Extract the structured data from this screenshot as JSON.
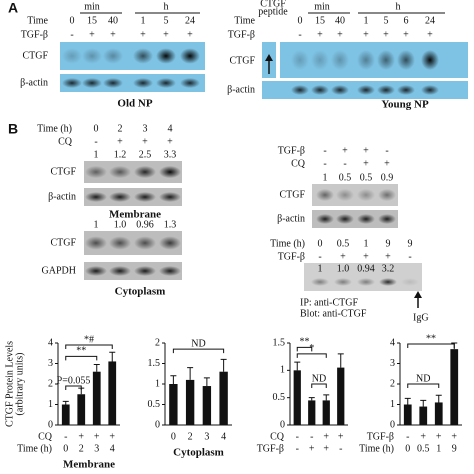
{
  "panel_labels": [
    "A",
    "B"
  ],
  "blot_old": {
    "unit_min": "min",
    "unit_h": "h",
    "time_label": "Time",
    "time": [
      "0",
      "15",
      "40",
      "1",
      "5",
      "24"
    ],
    "tgf_label": "TGF-β",
    "tgf": [
      "-",
      "+",
      "+",
      "+",
      "+",
      "+"
    ],
    "bands": [
      "CTGF",
      "β-actin"
    ],
    "caption": "Old NP"
  },
  "blot_young": {
    "peptide": [
      "CTGF",
      "peptide"
    ],
    "unit_min": "min",
    "unit_h": "h",
    "time_label": "Time",
    "time": [
      "0",
      "15",
      "40",
      "1",
      "5",
      "6",
      "24"
    ],
    "tgf_label": "TGF-β",
    "tgf": [
      "-",
      "+",
      "+",
      "+",
      "+",
      "+",
      "+"
    ],
    "bands": [
      "CTGF",
      "β-actin"
    ],
    "caption": "Young NP"
  },
  "blot_cq": {
    "time_label": "Time (h)",
    "time": [
      "0",
      "2",
      "3",
      "4"
    ],
    "cq_label": "CQ",
    "cq": [
      "-",
      "+",
      "+",
      "+"
    ],
    "quant_membrane": [
      "1",
      "1.2",
      "2.5",
      "3.3"
    ],
    "bands_membrane": [
      "CTGF",
      "β-actin"
    ],
    "caption_membrane": "Membrane",
    "quant_cytoplasm": [
      "1",
      "1.0",
      "0.96",
      "1.3"
    ],
    "bands_cytoplasm": [
      "CTGF",
      "GAPDH"
    ],
    "caption_cytoplasm": "Cytoplasm"
  },
  "blot_tgf": {
    "tgf_label": "TGF-β",
    "tgf": [
      "-",
      "+",
      "+",
      "-"
    ],
    "cq_label": "CQ",
    "cq": [
      "-",
      "-",
      "+",
      "+"
    ],
    "quant": [
      "1",
      "0.5",
      "0.5",
      "0.9"
    ],
    "bands": [
      "CTGF",
      "β-actin"
    ]
  },
  "blot_ip": {
    "time_label": "Time (h)",
    "time": [
      "0",
      "0.5",
      "1",
      "9",
      "9"
    ],
    "tgf_label": "TGF-β",
    "tgf": [
      "-",
      "+",
      "+",
      "+",
      "-"
    ],
    "quant": [
      "1",
      "1.0",
      "0.94",
      "3.2"
    ],
    "notes": [
      "IP: anti-CTGF",
      "Blot: anti-CTGF"
    ],
    "igg": "IgG"
  },
  "chart_data": [
    {
      "type": "bar",
      "ylabel": [
        "CTGF Protein Levels",
        "(arbitrary units)"
      ],
      "xlabel": "Membrane",
      "rows": [
        {
          "name": "CQ",
          "labels": [
            "-",
            "+",
            "+",
            "+"
          ]
        },
        {
          "name": "Time (h)",
          "labels": [
            "0",
            "2",
            "3",
            "4"
          ]
        }
      ],
      "values": [
        1.0,
        1.5,
        2.6,
        3.1
      ],
      "errors": [
        0.15,
        0.3,
        0.35,
        0.45
      ],
      "color": "#111111",
      "ylim": [
        0,
        4
      ],
      "yticks": [
        0,
        1,
        2,
        3,
        4
      ],
      "annotations": [
        "P=0.055",
        "**",
        "*#"
      ]
    },
    {
      "type": "bar",
      "xlabel": "Cytoplasm",
      "rows": [
        {
          "labels": [
            "0",
            "2",
            "3",
            "4"
          ]
        }
      ],
      "values": [
        1.0,
        1.1,
        0.95,
        1.3
      ],
      "errors": [
        0.2,
        0.3,
        0.2,
        0.3
      ],
      "color": "#111111",
      "ylim": [
        0,
        2
      ],
      "yticks": [
        0,
        0.5,
        1,
        1.5,
        2
      ],
      "annotations": [
        "ND"
      ]
    },
    {
      "type": "bar",
      "rows": [
        {
          "name": "CQ",
          "labels": [
            "-",
            "-",
            "+",
            "+"
          ]
        },
        {
          "name": "TGF-β",
          "labels": [
            "-",
            "+",
            "+",
            "-"
          ]
        }
      ],
      "values": [
        1.0,
        0.45,
        0.45,
        1.05
      ],
      "errors": [
        0.15,
        0.05,
        0.1,
        0.25
      ],
      "color": "#111111",
      "ylim": [
        0,
        1.5
      ],
      "yticks": [
        0,
        0.5,
        1,
        1.5
      ],
      "annotations": [
        "**",
        "*",
        "ND"
      ]
    },
    {
      "type": "bar",
      "rows": [
        {
          "name": "TGF-β",
          "labels": [
            "-",
            "+",
            "+",
            "+"
          ]
        },
        {
          "name": "Time (h)",
          "labels": [
            "0",
            "0.5",
            "1",
            "9"
          ]
        }
      ],
      "values": [
        1.0,
        0.9,
        1.1,
        3.7
      ],
      "errors": [
        0.3,
        0.3,
        0.35,
        0.3
      ],
      "color": "#111111",
      "ylim": [
        0,
        4
      ],
      "yticks": [
        0,
        1,
        2,
        3,
        4
      ],
      "annotations": [
        "ND",
        "**"
      ]
    }
  ]
}
